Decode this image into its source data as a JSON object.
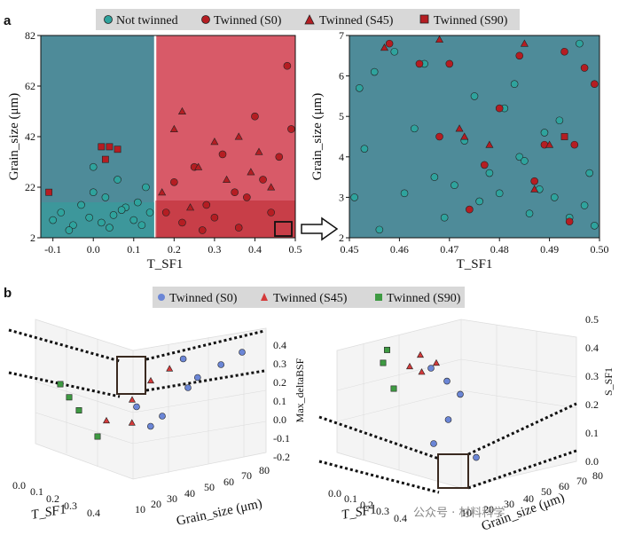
{
  "panel_labels": {
    "a": "a",
    "b": "b"
  },
  "colors": {
    "teal_bg": "#4e8b99",
    "red_bg": "#d85a68",
    "not_twinned": "#2fa39d",
    "twinned_red": "#b51d22",
    "s0_blue": "#6b86d6",
    "s45_red": "#d43a3a",
    "s90_green": "#3e9a42"
  },
  "legend_a": [
    "Not twinned",
    "Twinned (S0)",
    "Twinned (S45)",
    "Twinned (S90)"
  ],
  "legend_b": [
    "Twinned (S0)",
    "Twinned (S45)",
    "Twinned (S90)"
  ],
  "chart_data": [
    {
      "type": "scatter",
      "title": "",
      "xlabel": "T_SF1",
      "ylabel": "Grain_size (μm)",
      "xlim": [
        -0.13,
        0.5
      ],
      "ylim": [
        2,
        82
      ],
      "xticks": [
        "-0.1",
        "0.0",
        "0.1",
        "0.2",
        "0.3",
        "0.4",
        "0.5"
      ],
      "yticks": [
        "2",
        "22",
        "42",
        "62",
        "82"
      ],
      "threshold_x": 0.155,
      "series": [
        {
          "name": "Not twinned",
          "points": [
            [
              -0.1,
              9
            ],
            [
              -0.08,
              12
            ],
            [
              -0.05,
              7
            ],
            [
              -0.03,
              15
            ],
            [
              -0.01,
              10
            ],
            [
              0.0,
              20
            ],
            [
              0.02,
              8
            ],
            [
              0.03,
              18
            ],
            [
              0.05,
              11
            ],
            [
              0.06,
              25
            ],
            [
              0.08,
              14
            ],
            [
              0.1,
              9
            ],
            [
              0.11,
              16
            ],
            [
              0.13,
              22
            ],
            [
              0.14,
              12
            ],
            [
              0.0,
              30
            ],
            [
              0.07,
              13
            ],
            [
              -0.06,
              5
            ],
            [
              0.12,
              7
            ],
            [
              0.04,
              6
            ]
          ]
        },
        {
          "name": "Twinned (S0)",
          "points": [
            [
              0.18,
              12
            ],
            [
              0.2,
              24
            ],
            [
              0.22,
              8
            ],
            [
              0.25,
              30
            ],
            [
              0.28,
              15
            ],
            [
              0.3,
              10
            ],
            [
              0.32,
              35
            ],
            [
              0.35,
              20
            ],
            [
              0.38,
              18
            ],
            [
              0.4,
              50
            ],
            [
              0.42,
              25
            ],
            [
              0.44,
              12
            ],
            [
              0.46,
              34
            ],
            [
              0.48,
              70
            ],
            [
              0.49,
              45
            ],
            [
              0.36,
              6
            ],
            [
              0.27,
              5
            ]
          ]
        },
        {
          "name": "Twinned (S45)",
          "points": [
            [
              0.17,
              20
            ],
            [
              0.2,
              45
            ],
            [
              0.22,
              52
            ],
            [
              0.26,
              30
            ],
            [
              0.3,
              40
            ],
            [
              0.33,
              25
            ],
            [
              0.36,
              42
            ],
            [
              0.39,
              28
            ],
            [
              0.41,
              36
            ],
            [
              0.44,
              22
            ],
            [
              0.24,
              14
            ]
          ]
        },
        {
          "name": "Twinned (S90)",
          "points": [
            [
              -0.11,
              20
            ],
            [
              0.02,
              38
            ],
            [
              0.04,
              38
            ],
            [
              0.03,
              33
            ],
            [
              0.06,
              37
            ]
          ]
        }
      ]
    },
    {
      "type": "scatter",
      "title": "",
      "xlabel": "T_SF1",
      "ylabel": "Grain_size (μm)",
      "xlim": [
        0.45,
        0.5
      ],
      "ylim": [
        2,
        7
      ],
      "xticks": [
        "0.45",
        "0.46",
        "0.47",
        "0.48",
        "0.49",
        "0.50"
      ],
      "yticks": [
        "2",
        "3",
        "4",
        "5",
        "6",
        "7"
      ],
      "series": [
        {
          "name": "Not twinned",
          "points": [
            [
              0.451,
              3.0
            ],
            [
              0.452,
              5.7
            ],
            [
              0.453,
              4.2
            ],
            [
              0.455,
              6.1
            ],
            [
              0.456,
              2.2
            ],
            [
              0.459,
              6.6
            ],
            [
              0.461,
              3.1
            ],
            [
              0.463,
              4.7
            ],
            [
              0.465,
              6.3
            ],
            [
              0.467,
              3.5
            ],
            [
              0.469,
              2.5
            ],
            [
              0.471,
              3.3
            ],
            [
              0.473,
              4.4
            ],
            [
              0.475,
              5.5
            ],
            [
              0.476,
              2.9
            ],
            [
              0.478,
              3.6
            ],
            [
              0.48,
              3.1
            ],
            [
              0.481,
              5.2
            ],
            [
              0.483,
              5.8
            ],
            [
              0.484,
              4.0
            ],
            [
              0.485,
              3.9
            ],
            [
              0.486,
              2.6
            ],
            [
              0.488,
              3.2
            ],
            [
              0.489,
              4.6
            ],
            [
              0.491,
              3.0
            ],
            [
              0.492,
              4.9
            ],
            [
              0.494,
              2.5
            ],
            [
              0.496,
              6.8
            ],
            [
              0.497,
              2.8
            ],
            [
              0.498,
              3.6
            ],
            [
              0.499,
              2.3
            ]
          ]
        },
        {
          "name": "Twinned (S0)",
          "points": [
            [
              0.458,
              6.8
            ],
            [
              0.464,
              6.3
            ],
            [
              0.468,
              4.5
            ],
            [
              0.47,
              6.3
            ],
            [
              0.474,
              2.7
            ],
            [
              0.477,
              3.8
            ],
            [
              0.48,
              5.2
            ],
            [
              0.484,
              6.5
            ],
            [
              0.487,
              3.4
            ],
            [
              0.489,
              4.3
            ],
            [
              0.493,
              6.6
            ],
            [
              0.495,
              4.3
            ],
            [
              0.497,
              6.2
            ],
            [
              0.499,
              5.8
            ],
            [
              0.494,
              2.4
            ]
          ]
        },
        {
          "name": "Twinned (S45)",
          "points": [
            [
              0.457,
              6.7
            ],
            [
              0.468,
              6.9
            ],
            [
              0.472,
              4.7
            ],
            [
              0.478,
              4.3
            ],
            [
              0.485,
              6.8
            ],
            [
              0.49,
              4.3
            ],
            [
              0.473,
              4.5
            ],
            [
              0.487,
              3.2
            ]
          ]
        },
        {
          "name": "Twinned (S90)",
          "points": [
            [
              0.493,
              4.5
            ]
          ]
        }
      ]
    },
    {
      "type": "scatter3d",
      "title": "",
      "xlabel": "T_SF1",
      "ylabel": "Grain_size (μm)",
      "zlabel": "Max_deltaBSF",
      "xticks": [
        "0.0",
        "0.1",
        "0.2",
        "0.3",
        "0.4"
      ],
      "yticks": [
        "10",
        "20",
        "30",
        "40",
        "50",
        "60",
        "70",
        "80"
      ],
      "zticks": [
        "-0.2",
        "-0.1",
        "0.0",
        "0.1",
        "0.2",
        "0.3",
        "0.4"
      ],
      "series": [
        {
          "name": "Twinned (S0)",
          "points": [
            [
              0.3,
              20,
              0.05
            ],
            [
              0.35,
              30,
              -0.05
            ],
            [
              0.4,
              40,
              0.1
            ],
            [
              0.42,
              60,
              0.2
            ],
            [
              0.45,
              70,
              0.25
            ],
            [
              0.33,
              25,
              -0.1
            ],
            [
              0.38,
              50,
              0.15
            ],
            [
              0.41,
              35,
              0.3
            ]
          ]
        },
        {
          "name": "Twinned (S45)",
          "points": [
            [
              0.2,
              15,
              0.0
            ],
            [
              0.25,
              25,
              0.1
            ],
            [
              0.3,
              30,
              0.2
            ],
            [
              0.28,
              20,
              -0.05
            ],
            [
              0.32,
              40,
              0.25
            ]
          ]
        },
        {
          "name": "Twinned (S90)",
          "points": [
            [
              0.0,
              15,
              0.3
            ],
            [
              0.05,
              20,
              0.1
            ],
            [
              0.1,
              25,
              -0.1
            ],
            [
              0.02,
              18,
              0.2
            ]
          ]
        }
      ]
    },
    {
      "type": "scatter3d",
      "title": "",
      "xlabel": "T_SF1",
      "ylabel": "Grain_size (μm)",
      "zlabel": "S_SF1",
      "xticks": [
        "0.0",
        "0.1",
        "0.2",
        "0.3",
        "0.4"
      ],
      "yticks": [
        "10",
        "20",
        "30",
        "40",
        "50",
        "60",
        "70",
        "80"
      ],
      "zticks": [
        "0.0",
        "0.1",
        "0.2",
        "0.3",
        "0.4",
        "0.5"
      ],
      "series": [
        {
          "name": "Twinned (S0)",
          "points": [
            [
              0.4,
              20,
              0.1
            ],
            [
              0.45,
              30,
              0.2
            ],
            [
              0.42,
              50,
              0.3
            ],
            [
              0.38,
              40,
              0.35
            ],
            [
              0.35,
              25,
              0.4
            ],
            [
              0.48,
              60,
              0.05
            ]
          ]
        },
        {
          "name": "Twinned (S45)",
          "points": [
            [
              0.3,
              20,
              0.45
            ],
            [
              0.25,
              15,
              0.4
            ],
            [
              0.33,
              35,
              0.42
            ],
            [
              0.28,
              25,
              0.38
            ]
          ]
        },
        {
          "name": "Twinned (S90)",
          "points": [
            [
              0.05,
              15,
              0.4
            ],
            [
              0.1,
              20,
              0.3
            ],
            [
              0.02,
              25,
              0.45
            ]
          ]
        }
      ]
    }
  ],
  "watermark": "公众号 · 材料科学"
}
